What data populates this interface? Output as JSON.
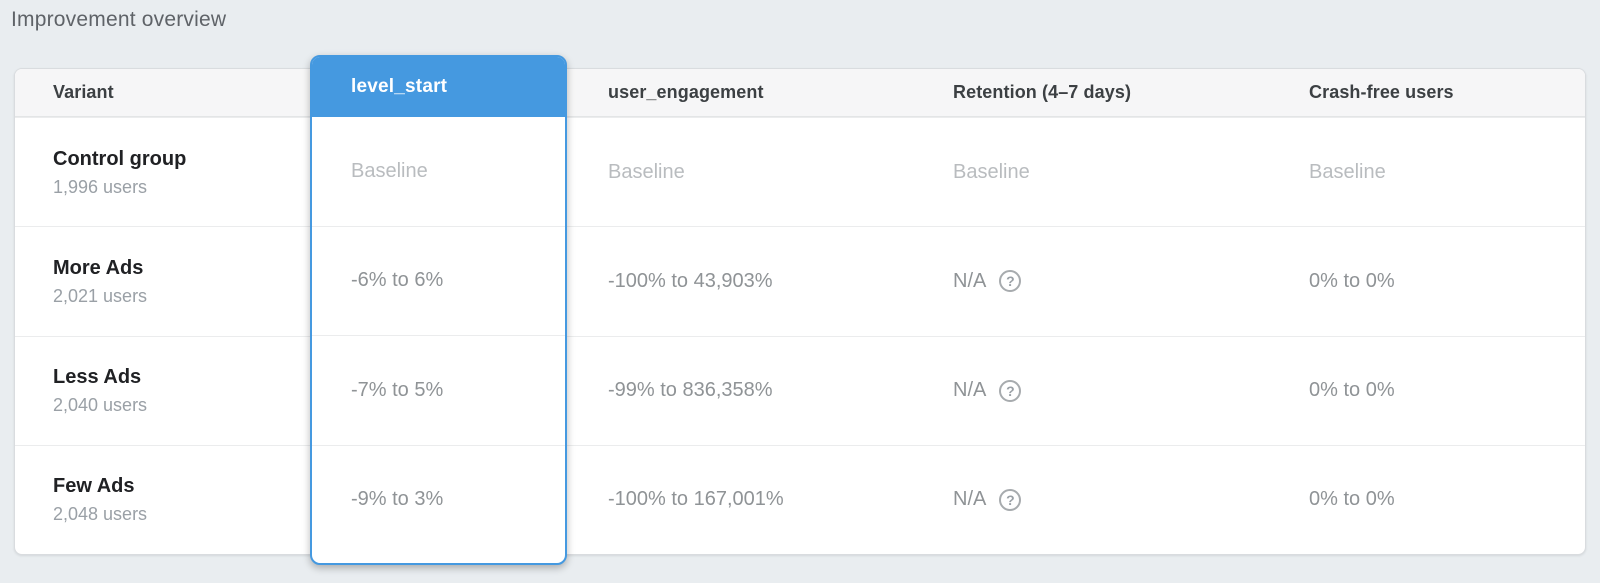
{
  "page": {
    "title": "Improvement overview"
  },
  "ui_colors": {
    "accent_blue": "#4599e0",
    "page_background": "#e9edf0",
    "header_background": "#f6f6f7",
    "baseline_text": "#b9bcbf",
    "value_text": "#8f9396"
  },
  "icons": {
    "help": "?"
  },
  "table": {
    "columns": [
      {
        "key": "variant",
        "label": "Variant",
        "selected": false
      },
      {
        "key": "level_start",
        "label": "level_start",
        "selected": true
      },
      {
        "key": "user_engagement",
        "label": "user_engagement",
        "selected": false
      },
      {
        "key": "retention",
        "label": "Retention (4–7 days)",
        "selected": false
      },
      {
        "key": "crash_free",
        "label": "Crash-free users",
        "selected": false
      }
    ],
    "rows": [
      {
        "variant": "Control group",
        "users": "1,996 users",
        "level_start": "Baseline",
        "user_engagement": "Baseline",
        "retention": "Baseline",
        "crash_free": "Baseline"
      },
      {
        "variant": "More Ads",
        "users": "2,021 users",
        "level_start": "-6% to 6%",
        "user_engagement": "-100% to 43,903%",
        "retention": "N/A",
        "crash_free": "0% to 0%"
      },
      {
        "variant": "Less Ads",
        "users": "2,040 users",
        "level_start": "-7% to 5%",
        "user_engagement": "-99% to 836,358%",
        "retention": "N/A",
        "crash_free": "0% to 0%"
      },
      {
        "variant": "Few Ads",
        "users": "2,048 users",
        "level_start": "-9% to 3%",
        "user_engagement": "-100% to 167,001%",
        "retention": "N/A",
        "crash_free": "0% to 0%"
      }
    ]
  }
}
